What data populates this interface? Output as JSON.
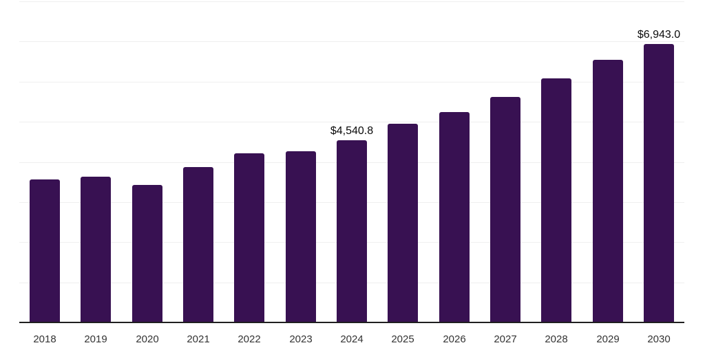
{
  "chart_data": {
    "type": "bar",
    "title": "",
    "xlabel": "",
    "ylabel": "",
    "categories": [
      "2018",
      "2019",
      "2020",
      "2021",
      "2022",
      "2023",
      "2024",
      "2025",
      "2026",
      "2027",
      "2028",
      "2029",
      "2030"
    ],
    "values": [
      3555,
      3630,
      3425,
      3880,
      4210,
      4265,
      4540.8,
      4945,
      5250,
      5625,
      6080,
      6540,
      6943.0
    ],
    "data_labels": [
      null,
      null,
      null,
      null,
      null,
      null,
      "$4,540.8",
      null,
      null,
      null,
      null,
      null,
      "$6,943.0"
    ],
    "ylim": [
      0,
      8000
    ],
    "gridline_step": 1000,
    "grid": "horizontal-only",
    "legend": "none",
    "y_tick_labels": "none",
    "colors": {
      "bar": "#381152",
      "axis": "#1f1f1f",
      "grid": "#efefef",
      "tick_label": "#333333",
      "data_label": "#0a0a0a",
      "background": "#ffffff"
    }
  }
}
